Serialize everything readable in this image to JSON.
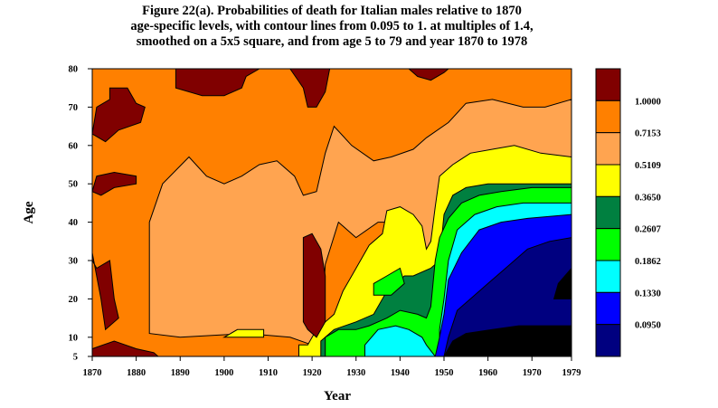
{
  "chart_data": {
    "type": "heatmap",
    "title_lines": [
      "Figure 22(a). Probabilities of death for Italian males relative to 1870",
      "age-specific levels, with contour lines from 0.095 to 1. at multiples of 1.4,",
      "smoothed on a 5x5 square, and from age 5 to 79 and year 1870 to 1978"
    ],
    "xlabel": "Year",
    "ylabel": "Age",
    "xlim": [
      1870,
      1979
    ],
    "ylim": [
      5,
      80
    ],
    "x_ticks": [
      "1870",
      "1880",
      "1890",
      "1900",
      "1910",
      "1920",
      "1930",
      "1940",
      "1950",
      "1960",
      "1970",
      "1979"
    ],
    "x_tick_values": [
      1870,
      1880,
      1890,
      1900,
      1910,
      1920,
      1930,
      1940,
      1950,
      1960,
      1970,
      1979
    ],
    "y_ticks": [
      "5",
      "10",
      "20",
      "30",
      "40",
      "50",
      "60",
      "70",
      "80"
    ],
    "y_tick_values": [
      5,
      10,
      20,
      30,
      40,
      50,
      60,
      70,
      80
    ],
    "legend": {
      "placement": "right",
      "levels": [
        {
          "label": "1.0000",
          "color": "#800000"
        },
        {
          "label": "0.7153",
          "color": "#ff8000"
        },
        {
          "label": "0.5109",
          "color": "#ffa450"
        },
        {
          "label": "0.3650",
          "color": "#ffff00"
        },
        {
          "label": "0.2607",
          "color": "#008040"
        },
        {
          "label": "0.1862",
          "color": "#00ff00"
        },
        {
          "label": "0.1330",
          "color": "#00ffff"
        },
        {
          "label": "0.0950",
          "color": "#0000ff"
        },
        {
          "label": "",
          "color": "#000080"
        }
      ]
    },
    "regions": [
      {
        "level": 1,
        "points": [
          [
            1870,
            5
          ],
          [
            1979,
            5
          ],
          [
            1979,
            80
          ],
          [
            1870,
            80
          ]
        ]
      },
      {
        "level": 2,
        "points": [
          [
            1883,
            40
          ],
          [
            1886,
            50
          ],
          [
            1892,
            57
          ],
          [
            1896,
            52
          ],
          [
            1900,
            50
          ],
          [
            1904,
            52
          ],
          [
            1908,
            55
          ],
          [
            1912,
            56
          ],
          [
            1916,
            52
          ],
          [
            1918,
            47
          ],
          [
            1921,
            48
          ],
          [
            1923,
            58
          ],
          [
            1925,
            65
          ],
          [
            1929,
            60
          ],
          [
            1934,
            56
          ],
          [
            1938,
            57
          ],
          [
            1943,
            59
          ],
          [
            1946,
            62
          ],
          [
            1951,
            66
          ],
          [
            1955,
            71
          ],
          [
            1961,
            72
          ],
          [
            1968,
            70
          ],
          [
            1973,
            70
          ],
          [
            1979,
            72
          ],
          [
            1979,
            5
          ],
          [
            1946,
            5
          ],
          [
            1946,
            24
          ],
          [
            1947,
            30
          ],
          [
            1945,
            35
          ],
          [
            1943,
            40
          ],
          [
            1935,
            40
          ],
          [
            1930,
            36
          ],
          [
            1926,
            40
          ],
          [
            1923,
            29
          ],
          [
            1922,
            8
          ],
          [
            1920,
            8
          ],
          [
            1915,
            10
          ],
          [
            1905,
            11
          ],
          [
            1890,
            10
          ],
          [
            1883,
            11
          ]
        ]
      },
      {
        "level": 3,
        "points": [
          [
            1917,
            5
          ],
          [
            1917,
            8
          ],
          [
            1919,
            8
          ],
          [
            1921,
            12
          ],
          [
            1925,
            16
          ],
          [
            1927,
            22
          ],
          [
            1929,
            26
          ],
          [
            1931,
            30
          ],
          [
            1933,
            34
          ],
          [
            1936,
            37
          ],
          [
            1937,
            43
          ],
          [
            1940,
            44
          ],
          [
            1943,
            42
          ],
          [
            1945,
            39
          ],
          [
            1946,
            33
          ],
          [
            1947,
            35
          ],
          [
            1948,
            44
          ],
          [
            1949,
            52
          ],
          [
            1952,
            55
          ],
          [
            1956,
            58
          ],
          [
            1961,
            59
          ],
          [
            1966,
            60
          ],
          [
            1972,
            58
          ],
          [
            1979,
            57
          ],
          [
            1979,
            5
          ]
        ]
      },
      {
        "level": 3,
        "points": [
          [
            1900,
            10
          ],
          [
            1903,
            12
          ],
          [
            1909,
            12
          ],
          [
            1909,
            10
          ]
        ]
      },
      {
        "level": 4,
        "points": [
          [
            1922,
            5
          ],
          [
            1922,
            9
          ],
          [
            1925,
            12
          ],
          [
            1930,
            14
          ],
          [
            1934,
            16
          ],
          [
            1937,
            22
          ],
          [
            1939,
            24
          ],
          [
            1941,
            26
          ],
          [
            1943,
            26
          ],
          [
            1945,
            27
          ],
          [
            1947,
            28
          ],
          [
            1949,
            30
          ],
          [
            1950,
            42
          ],
          [
            1952,
            47
          ],
          [
            1955,
            49
          ],
          [
            1960,
            50
          ],
          [
            1968,
            50
          ],
          [
            1979,
            50
          ],
          [
            1979,
            5
          ]
        ]
      },
      {
        "level": 5,
        "points": [
          [
            1923,
            5
          ],
          [
            1923,
            10
          ],
          [
            1926,
            12
          ],
          [
            1930,
            12
          ],
          [
            1933,
            13
          ],
          [
            1937,
            15
          ],
          [
            1940,
            17
          ],
          [
            1944,
            16
          ],
          [
            1946,
            15
          ],
          [
            1947,
            18
          ],
          [
            1948,
            30
          ],
          [
            1949,
            36
          ],
          [
            1951,
            41
          ],
          [
            1954,
            45
          ],
          [
            1958,
            47
          ],
          [
            1963,
            48
          ],
          [
            1970,
            49
          ],
          [
            1979,
            49
          ],
          [
            1979,
            5
          ]
        ]
      },
      {
        "level": 5,
        "points": [
          [
            1934,
            21
          ],
          [
            1934,
            24
          ],
          [
            1937,
            26
          ],
          [
            1940,
            28
          ],
          [
            1941,
            24
          ],
          [
            1938,
            21
          ]
        ]
      },
      {
        "level": 6,
        "points": [
          [
            1932,
            5
          ],
          [
            1932,
            8
          ],
          [
            1935,
            12
          ],
          [
            1939,
            13
          ],
          [
            1942,
            12
          ],
          [
            1945,
            10
          ],
          [
            1946,
            8
          ],
          [
            1948,
            5
          ]
        ]
      },
      {
        "level": 6,
        "points": [
          [
            1949,
            5
          ],
          [
            1949,
            12
          ],
          [
            1950,
            20
          ],
          [
            1951,
            30
          ],
          [
            1953,
            38
          ],
          [
            1957,
            42
          ],
          [
            1962,
            44
          ],
          [
            1968,
            45
          ],
          [
            1979,
            45
          ],
          [
            1979,
            5
          ]
        ]
      },
      {
        "level": 7,
        "points": [
          [
            1948,
            5
          ],
          [
            1949,
            10
          ],
          [
            1950,
            16
          ],
          [
            1951,
            25
          ],
          [
            1954,
            32
          ],
          [
            1958,
            38
          ],
          [
            1963,
            40
          ],
          [
            1969,
            41
          ],
          [
            1979,
            42
          ],
          [
            1979,
            5
          ]
        ]
      },
      {
        "level": 8,
        "points": [
          [
            1950,
            5
          ],
          [
            1951,
            10
          ],
          [
            1953,
            17
          ],
          [
            1956,
            20
          ],
          [
            1960,
            24
          ],
          [
            1964,
            28
          ],
          [
            1969,
            33
          ],
          [
            1974,
            35
          ],
          [
            1979,
            36
          ],
          [
            1979,
            5
          ]
        ]
      },
      {
        "level": 9,
        "points": [
          [
            1950,
            5
          ],
          [
            1952,
            9
          ],
          [
            1955,
            11
          ],
          [
            1961,
            12
          ],
          [
            1967,
            13
          ],
          [
            1979,
            13
          ],
          [
            1979,
            5
          ]
        ]
      },
      {
        "level": 9,
        "points": [
          [
            1975,
            20
          ],
          [
            1976,
            24
          ],
          [
            1979,
            28
          ],
          [
            1979,
            20
          ]
        ]
      },
      {
        "level": 0,
        "points": [
          [
            1870,
            63
          ],
          [
            1871,
            70
          ],
          [
            1874,
            72
          ],
          [
            1874,
            75
          ],
          [
            1878,
            75
          ],
          [
            1880,
            71
          ],
          [
            1882,
            70
          ],
          [
            1881,
            66
          ],
          [
            1876,
            64
          ],
          [
            1873,
            61
          ]
        ]
      },
      {
        "level": 0,
        "points": [
          [
            1870,
            48
          ],
          [
            1871,
            52
          ],
          [
            1875,
            53
          ],
          [
            1880,
            52
          ],
          [
            1880,
            50
          ],
          [
            1875,
            49
          ],
          [
            1872,
            47
          ]
        ]
      },
      {
        "level": 0,
        "points": [
          [
            1870,
            32
          ],
          [
            1870,
            30
          ],
          [
            1871,
            28
          ],
          [
            1874,
            30
          ],
          [
            1875,
            20
          ],
          [
            1876,
            15
          ],
          [
            1873,
            12
          ],
          [
            1872,
            20
          ]
        ]
      },
      {
        "level": 0,
        "points": [
          [
            1870,
            5
          ],
          [
            1870,
            7
          ],
          [
            1875,
            9
          ],
          [
            1880,
            7
          ],
          [
            1884,
            6
          ],
          [
            1885,
            5
          ]
        ]
      },
      {
        "level": 0,
        "points": [
          [
            1889,
            80
          ],
          [
            1889,
            75
          ],
          [
            1895,
            73
          ],
          [
            1900,
            73
          ],
          [
            1904,
            75
          ],
          [
            1905,
            78
          ],
          [
            1908,
            80
          ]
        ]
      },
      {
        "level": 0,
        "points": [
          [
            1915,
            80
          ],
          [
            1918,
            75
          ],
          [
            1919,
            70
          ],
          [
            1921,
            70
          ],
          [
            1923,
            74
          ],
          [
            1924,
            80
          ]
        ]
      },
      {
        "level": 0,
        "points": [
          [
            1918,
            14
          ],
          [
            1918,
            36
          ],
          [
            1920,
            37
          ],
          [
            1922,
            33
          ],
          [
            1923,
            26
          ],
          [
            1923,
            14
          ],
          [
            1921,
            10
          ],
          [
            1919,
            12
          ]
        ]
      },
      {
        "level": 0,
        "points": [
          [
            1942,
            80
          ],
          [
            1944,
            78
          ],
          [
            1947,
            77
          ],
          [
            1950,
            79
          ],
          [
            1951,
            80
          ]
        ]
      }
    ]
  }
}
